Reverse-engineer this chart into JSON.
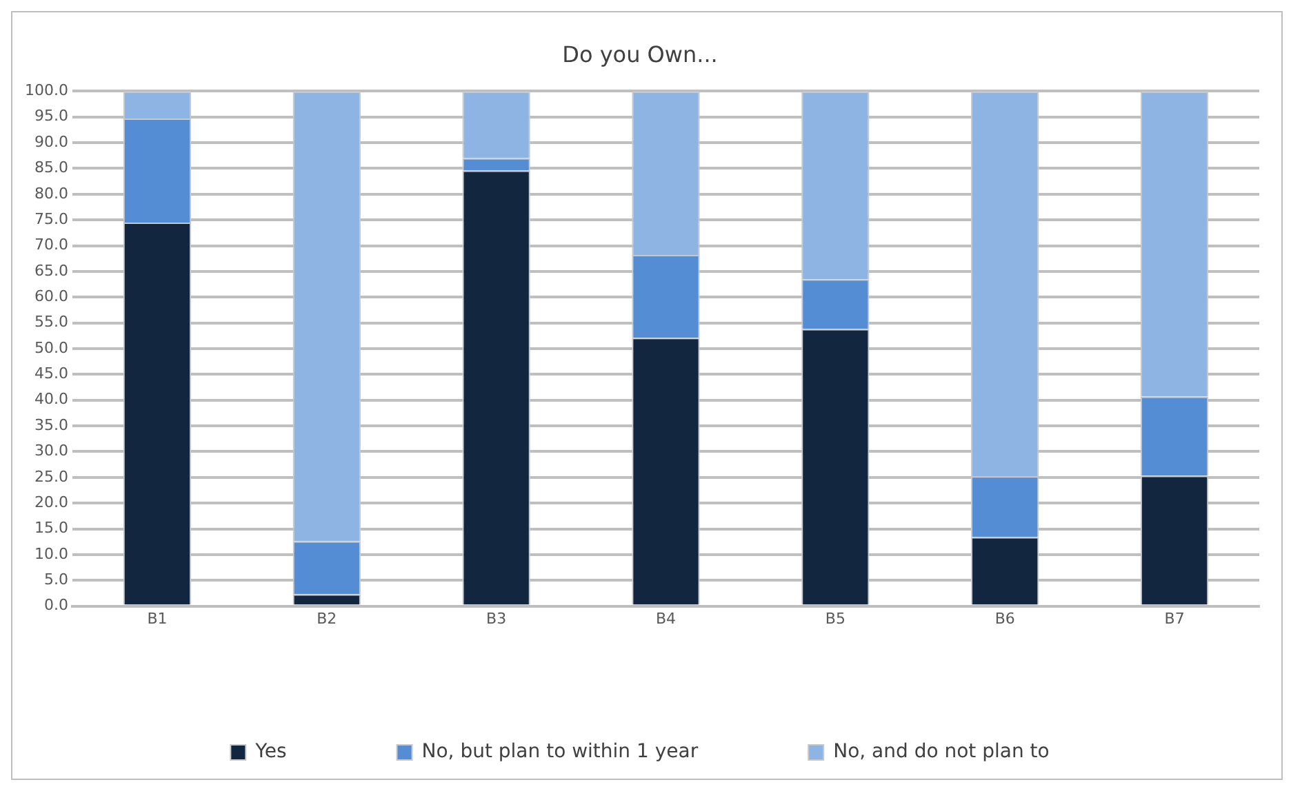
{
  "chart_data": {
    "type": "bar",
    "title": "Do you Own...",
    "categories": [
      "B1",
      "B2",
      "B3",
      "B4",
      "B5",
      "B6",
      "B7"
    ],
    "stacked": true,
    "series": [
      {
        "name": "Yes",
        "color": "#12263f",
        "values": [
          74.5,
          2.3,
          84.6,
          52.1,
          53.8,
          13.4,
          25.3
        ]
      },
      {
        "name": "No, but plan to within 1 year",
        "color": "#548dd4",
        "values": [
          20.2,
          10.3,
          2.4,
          16.1,
          9.7,
          11.8,
          15.4
        ]
      },
      {
        "name": "No, and do not plan to",
        "color": "#8eb4e3",
        "values": [
          5.3,
          87.4,
          13.0,
          31.8,
          36.5,
          74.8,
          59.3
        ]
      }
    ],
    "ylim": [
      0,
      100
    ],
    "yticks": [
      {
        "value": 0,
        "label": "0.0"
      },
      {
        "value": 5,
        "label": "5.0"
      },
      {
        "value": 10,
        "label": "10.0"
      },
      {
        "value": 15,
        "label": "15.0"
      },
      {
        "value": 20,
        "label": "20.0"
      },
      {
        "value": 25,
        "label": "25.0"
      },
      {
        "value": 30,
        "label": "30.0"
      },
      {
        "value": 35,
        "label": "35.0"
      },
      {
        "value": 40,
        "label": "40.0"
      },
      {
        "value": 45,
        "label": "45.0"
      },
      {
        "value": 50,
        "label": "50.0"
      },
      {
        "value": 55,
        "label": "55.0"
      },
      {
        "value": 60,
        "label": "60.0"
      },
      {
        "value": 65,
        "label": "65.0"
      },
      {
        "value": 70,
        "label": "70.0"
      },
      {
        "value": 75,
        "label": "75.0"
      },
      {
        "value": 80,
        "label": "80.0"
      },
      {
        "value": 85,
        "label": "85.0"
      },
      {
        "value": 90,
        "label": "90.0"
      },
      {
        "value": 95,
        "label": "95.0"
      },
      {
        "value": 100,
        "label": "100.0"
      }
    ],
    "grid": "y",
    "legend": "bottom"
  }
}
